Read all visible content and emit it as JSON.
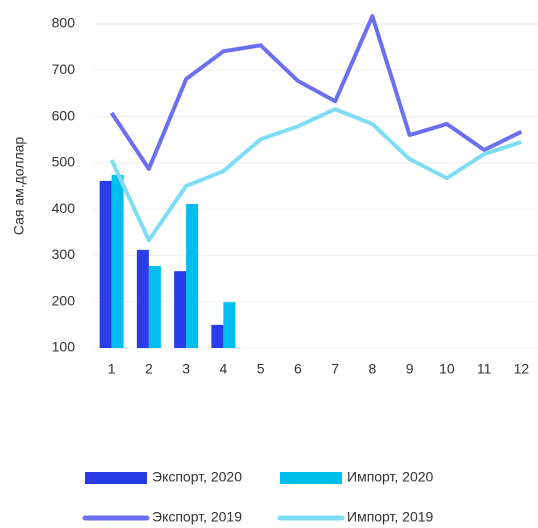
{
  "chart_data": {
    "type": "combo",
    "y_label": "Сая ам.доллар",
    "categories": [
      "1",
      "2",
      "3",
      "4",
      "5",
      "6",
      "7",
      "8",
      "9",
      "10",
      "11",
      "12"
    ],
    "ylim": [
      100,
      800
    ],
    "yticks": [
      100,
      200,
      300,
      400,
      500,
      600,
      700,
      800
    ],
    "grid": true,
    "series": [
      {
        "name": "Экспорт, 2020",
        "type": "bar",
        "color": "#2a3be8",
        "values": [
          461,
          312,
          266,
          150,
          null,
          null,
          null,
          null,
          null,
          null,
          null,
          null
        ]
      },
      {
        "name": "Импорт, 2020",
        "type": "bar",
        "color": "#00bfee",
        "values": [
          474,
          277,
          411,
          199,
          null,
          null,
          null,
          null,
          null,
          null,
          null,
          null
        ]
      },
      {
        "name": "Экспорт, 2019",
        "type": "line",
        "color": "#6b70ee",
        "values": [
          608,
          487,
          681,
          741,
          754,
          677,
          633,
          817,
          560,
          584,
          528,
          567
        ]
      },
      {
        "name": "Импорт, 2019",
        "type": "line",
        "color": "#7fdcf5",
        "values": [
          506,
          333,
          450,
          482,
          551,
          579,
          616,
          584,
          508,
          467,
          519,
          545
        ]
      }
    ]
  }
}
